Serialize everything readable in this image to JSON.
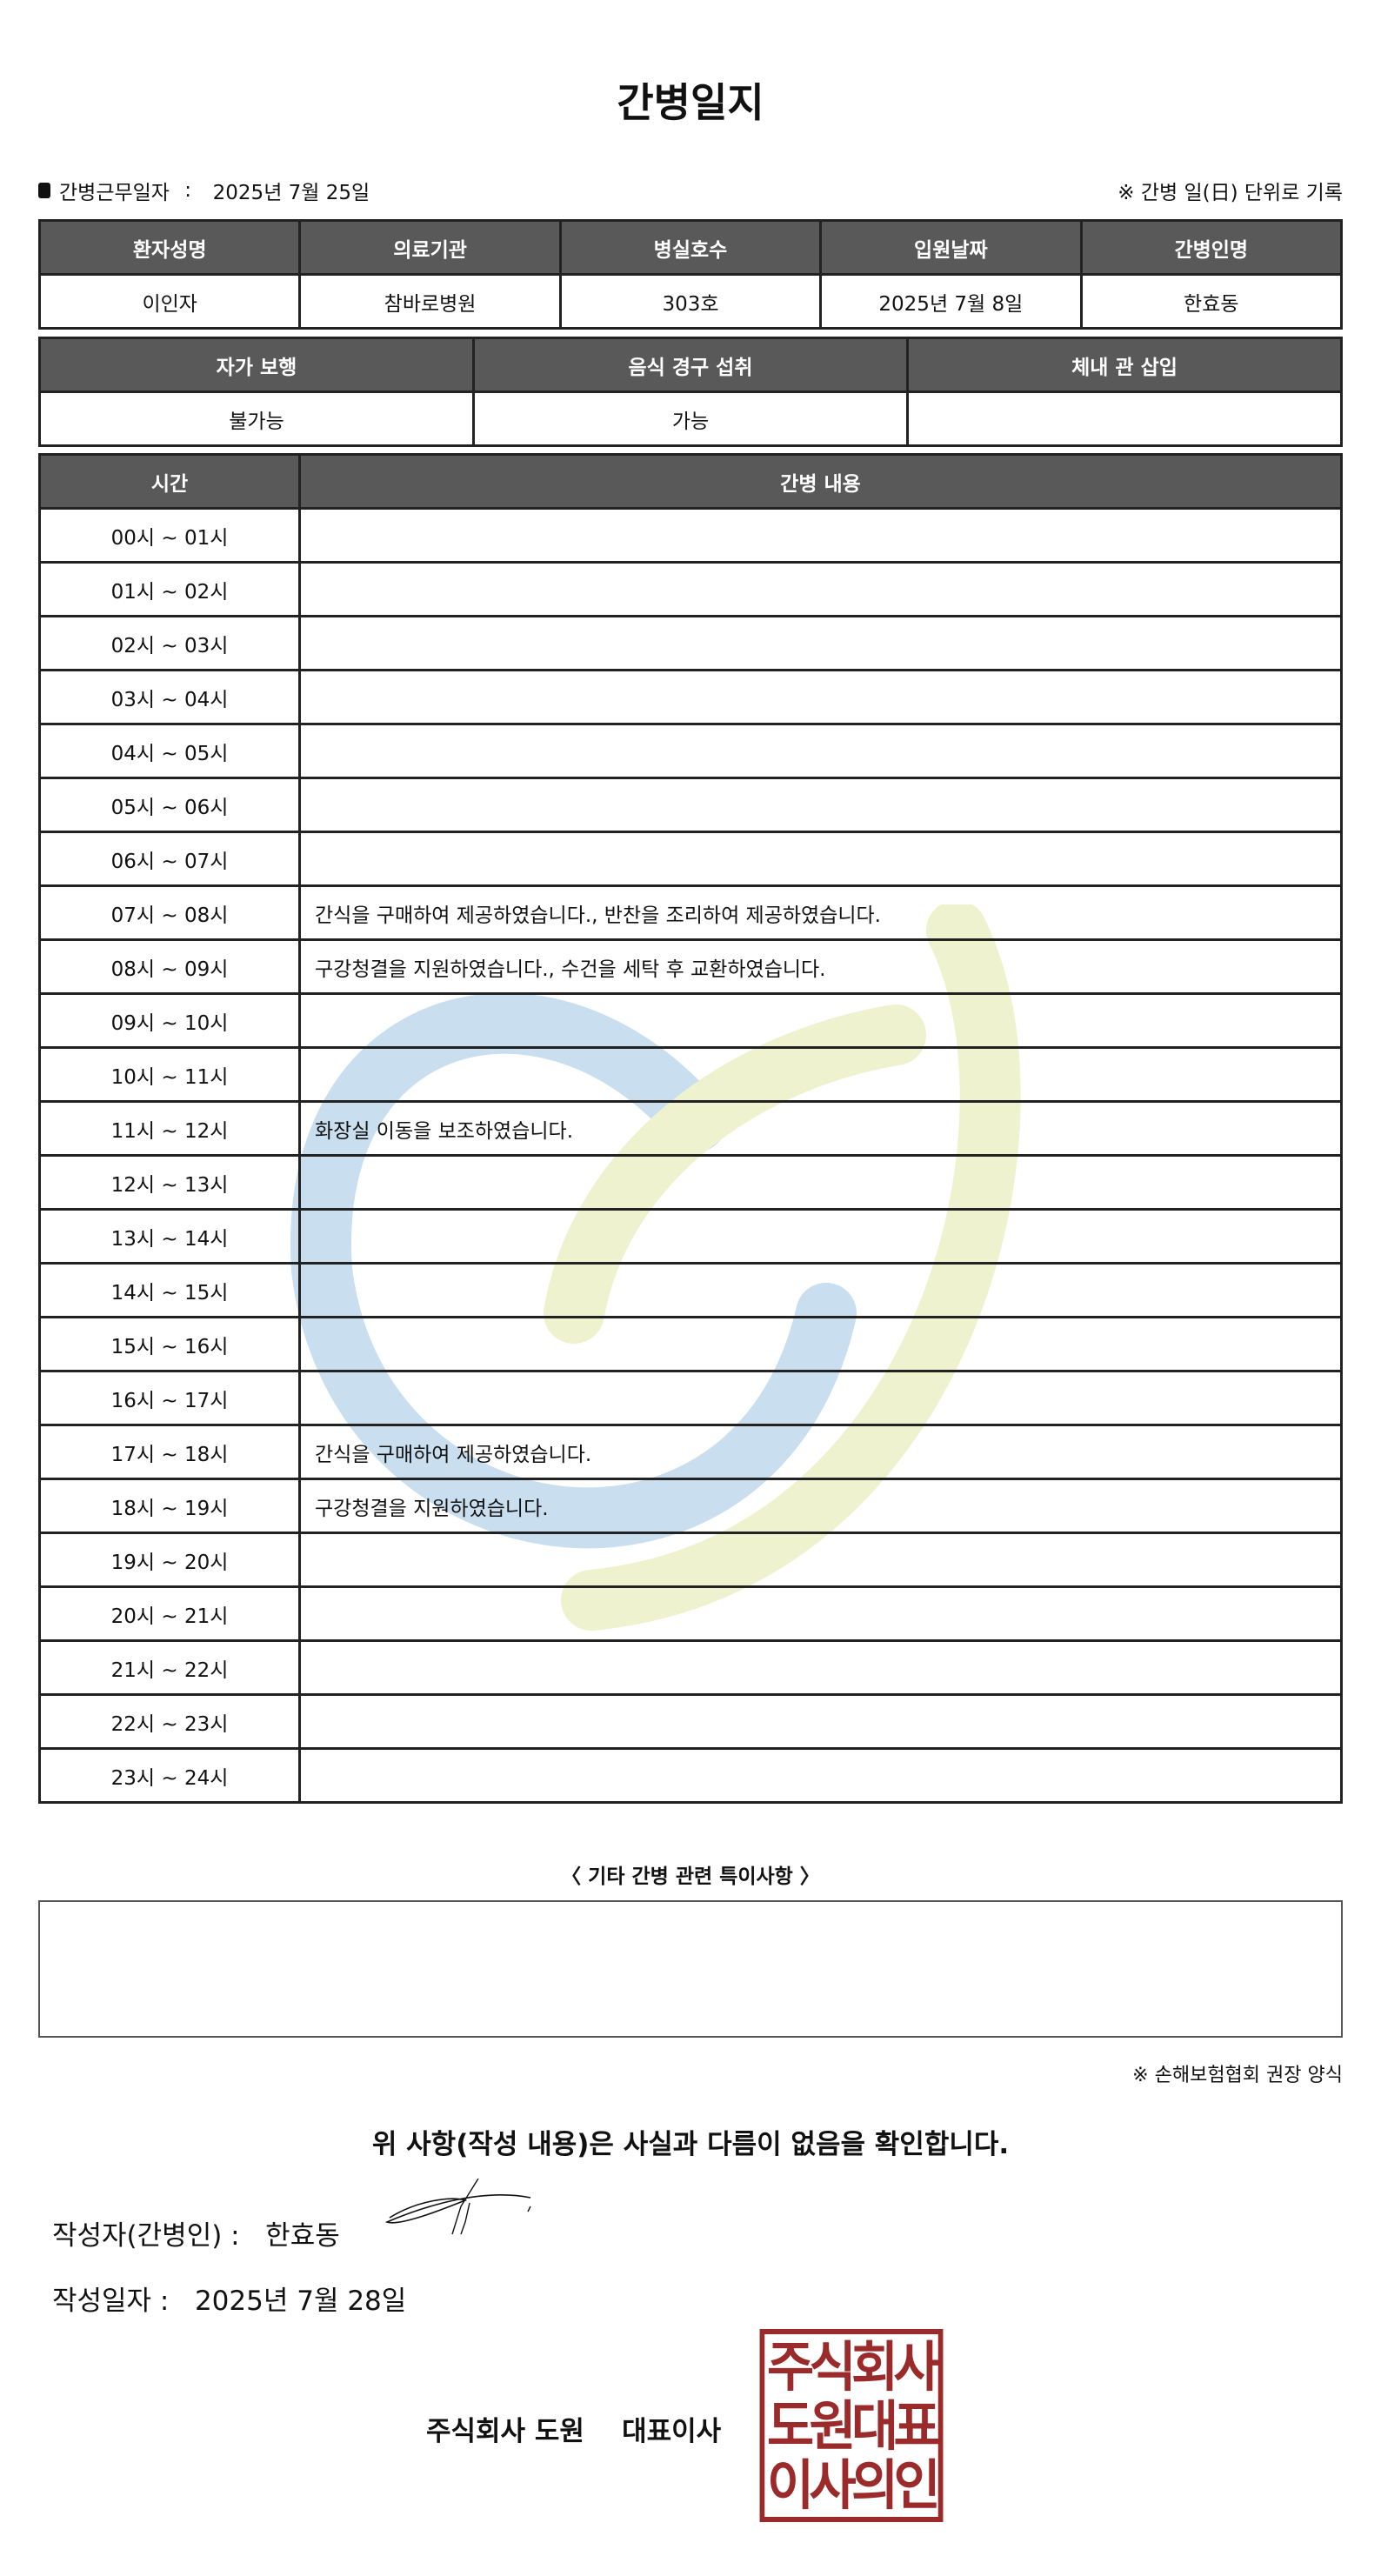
{
  "title": "간병일지",
  "work_date_label": "간병근무일자",
  "work_date": "2025년 7월 25일",
  "record_note": "※ 간병 일(日) 단위로 기록",
  "patient_table": {
    "headers": [
      "환자성명",
      "의료기관",
      "병실호수",
      "입원날짜",
      "간병인명"
    ],
    "values": [
      "이인자",
      "참바로병원",
      "303호",
      "2025년 7월 8일",
      "한효동"
    ]
  },
  "status_table": {
    "headers": [
      "자가 보행",
      "음식 경구 섭취",
      "체내 관 삽입"
    ],
    "values": [
      "불가능",
      "가능",
      ""
    ]
  },
  "log_table": {
    "headers": [
      "시간",
      "간병 내용"
    ],
    "rows": [
      {
        "time": "00시 ~ 01시",
        "content": ""
      },
      {
        "time": "01시 ~ 02시",
        "content": ""
      },
      {
        "time": "02시 ~ 03시",
        "content": ""
      },
      {
        "time": "03시 ~ 04시",
        "content": ""
      },
      {
        "time": "04시 ~ 05시",
        "content": ""
      },
      {
        "time": "05시 ~ 06시",
        "content": ""
      },
      {
        "time": "06시 ~ 07시",
        "content": ""
      },
      {
        "time": "07시 ~ 08시",
        "content": "간식을 구매하여 제공하였습니다., 반찬을 조리하여 제공하였습니다."
      },
      {
        "time": "08시 ~ 09시",
        "content": "구강청결을 지원하였습니다., 수건을 세탁 후 교환하였습니다."
      },
      {
        "time": "09시 ~ 10시",
        "content": ""
      },
      {
        "time": "10시 ~ 11시",
        "content": ""
      },
      {
        "time": "11시 ~ 12시",
        "content": "화장실 이동을 보조하였습니다."
      },
      {
        "time": "12시 ~ 13시",
        "content": ""
      },
      {
        "time": "13시 ~ 14시",
        "content": ""
      },
      {
        "time": "14시 ~ 15시",
        "content": ""
      },
      {
        "time": "15시 ~ 16시",
        "content": ""
      },
      {
        "time": "16시 ~ 17시",
        "content": ""
      },
      {
        "time": "17시 ~ 18시",
        "content": "간식을 구매하여 제공하였습니다."
      },
      {
        "time": "18시 ~ 19시",
        "content": "구강청결을 지원하였습니다."
      },
      {
        "time": "19시 ~ 20시",
        "content": ""
      },
      {
        "time": "20시 ~ 21시",
        "content": ""
      },
      {
        "time": "21시 ~ 22시",
        "content": ""
      },
      {
        "time": "22시 ~ 23시",
        "content": ""
      },
      {
        "time": "23시 ~ 24시",
        "content": ""
      }
    ]
  },
  "etc_label": "〈 기타 간병 관련 특이사항 〉",
  "etc_content": "",
  "source_note": "※ 손해보험협회 권장 양식",
  "confirm_text": "위 사항(작성 내용)은 사실과 다름이 없음을 확인합니다.",
  "writer_label": "작성자(간병인) :",
  "writer_name": "한효동",
  "write_date_label": "작성일자 :",
  "write_date": "2025년 7월 28일",
  "company": "주식회사 도원    대표이사",
  "stamp_text": "주식회사 도원대표 이사의인",
  "colors": {
    "header_bg": "#595959",
    "stamp": "#9b2a2a",
    "watermark_blue": "#c9dff0",
    "watermark_green": "#eef2cf"
  }
}
